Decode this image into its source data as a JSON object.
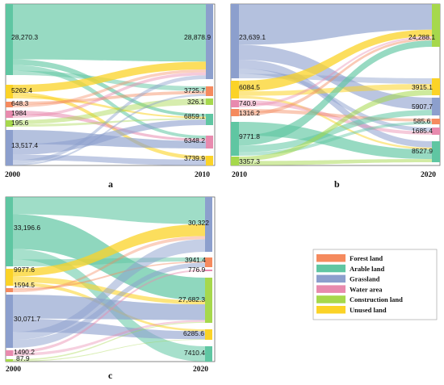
{
  "colors": {
    "forest": "#f58a5e",
    "arable": "#5fc6a2",
    "grassland": "#8c9fcd",
    "water": "#e88aae",
    "construction": "#a6d84c",
    "unused": "#fbd327"
  },
  "legend": [
    {
      "key": "forest",
      "label": "Forest land"
    },
    {
      "key": "arable",
      "label": "Arable land"
    },
    {
      "key": "grassland",
      "label": "Grassland"
    },
    {
      "key": "water",
      "label": "Water area"
    },
    {
      "key": "construction",
      "label": "Construction land"
    },
    {
      "key": "unused",
      "label": "Unused land"
    }
  ],
  "chart_data": [
    {
      "type": "sankey",
      "panel": "a",
      "left_year": "2000",
      "right_year": "2010",
      "left_nodes": [
        {
          "key": "arable",
          "label": "28,270.3"
        },
        {
          "key": "unused",
          "label": "5262.4"
        },
        {
          "key": "forest",
          "label": "648.3"
        },
        {
          "key": "water",
          "label": "1984"
        },
        {
          "key": "construction",
          "label": "195.6"
        },
        {
          "key": "grassland",
          "label": "13,517.4"
        }
      ],
      "right_nodes": [
        {
          "key": "grassland",
          "label": "28,878.9"
        },
        {
          "key": "forest",
          "label": "3725.7"
        },
        {
          "key": "construction",
          "label": "326.1"
        },
        {
          "key": "arable",
          "label": "6859.1"
        },
        {
          "key": "water",
          "label": "6348.2"
        },
        {
          "key": "unused",
          "label": "3739.9"
        }
      ]
    },
    {
      "type": "sankey",
      "panel": "b",
      "left_year": "2010",
      "right_year": "2020",
      "left_nodes": [
        {
          "key": "grassland",
          "label": "23,639.1"
        },
        {
          "key": "unused",
          "label": "6084.5"
        },
        {
          "key": "water",
          "label": "740.9"
        },
        {
          "key": "forest",
          "label": "1316.2"
        },
        {
          "key": "arable",
          "label": "9771.8"
        },
        {
          "key": "construction",
          "label": "3357.3"
        }
      ],
      "right_nodes": [
        {
          "key": "construction",
          "label": "24,288.1"
        },
        {
          "key": "unused",
          "label": "3915.1"
        },
        {
          "key": "grassland",
          "label": "5907.7"
        },
        {
          "key": "forest",
          "label": "585.6"
        },
        {
          "key": "water",
          "label": "1685.4"
        },
        {
          "key": "arable",
          "label": "8527.9"
        }
      ]
    },
    {
      "type": "sankey",
      "panel": "c",
      "left_year": "2000",
      "right_year": "2020",
      "left_nodes": [
        {
          "key": "arable",
          "label": "33,196.6"
        },
        {
          "key": "unused",
          "label": "9977.6"
        },
        {
          "key": "forest",
          "label": "1594.5"
        },
        {
          "key": "grassland",
          "label": "30,071.7"
        },
        {
          "key": "water",
          "label": "1490.2"
        },
        {
          "key": "construction",
          "label": "87.9"
        }
      ],
      "right_nodes": [
        {
          "key": "grassland",
          "label": "30,322"
        },
        {
          "key": "forest",
          "label": "3941.4"
        },
        {
          "key": "water",
          "label": "776.9"
        },
        {
          "key": "construction",
          "label": "27,682.3"
        },
        {
          "key": "unused",
          "label": "6285.6"
        },
        {
          "key": "arable",
          "label": "7410.4"
        }
      ]
    }
  ]
}
